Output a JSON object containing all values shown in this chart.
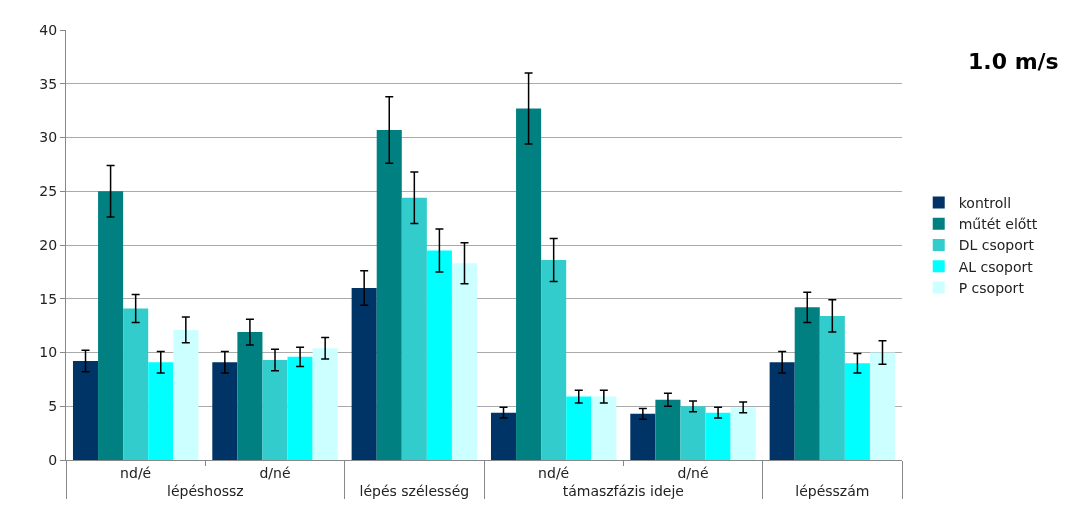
{
  "chart_data": {
    "type": "bar",
    "title": "1.0 m/s",
    "categories": [
      [
        "lépéshossz",
        "nd/é"
      ],
      [
        null,
        "d/né"
      ],
      [
        "lépés szélesség",
        null
      ],
      [
        "támaszfázis ideje",
        "nd/é"
      ],
      [
        null,
        "d/né"
      ],
      [
        "lépésszám",
        null
      ]
    ],
    "series": [
      {
        "name": "kontroll",
        "color": "#003366",
        "values": [
          9.2,
          9.1,
          16.0,
          4.4,
          4.3,
          9.1
        ],
        "errors": [
          1.0,
          1.0,
          1.6,
          0.5,
          0.5,
          1.0
        ]
      },
      {
        "name": "műtét előtt",
        "color": "#008080",
        "values": [
          25.0,
          11.9,
          30.7,
          32.7,
          5.6,
          14.2
        ],
        "errors": [
          2.4,
          1.2,
          3.1,
          3.3,
          0.6,
          1.4
        ]
      },
      {
        "name": "DL csoport",
        "color": "#33cccc",
        "values": [
          14.1,
          9.3,
          24.4,
          18.6,
          5.0,
          13.4
        ],
        "errors": [
          1.3,
          1.0,
          2.4,
          2.0,
          0.5,
          1.5
        ]
      },
      {
        "name": "AL csoport",
        "color": "#00ffff",
        "values": [
          9.1,
          9.6,
          19.5,
          5.9,
          4.4,
          9.0
        ],
        "errors": [
          1.0,
          0.9,
          2.0,
          0.6,
          0.5,
          0.9
        ]
      },
      {
        "name": "P csoport",
        "color": "#ccffff",
        "values": [
          12.1,
          10.4,
          18.3,
          5.9,
          4.9,
          10.0
        ],
        "errors": [
          1.2,
          1.0,
          1.9,
          0.6,
          0.5,
          1.1
        ]
      }
    ],
    "ylim": [
      0,
      40
    ],
    "yticks": [
      0,
      5,
      10,
      15,
      20,
      25,
      30,
      35,
      40
    ],
    "grid": "y",
    "legend": "right"
  }
}
